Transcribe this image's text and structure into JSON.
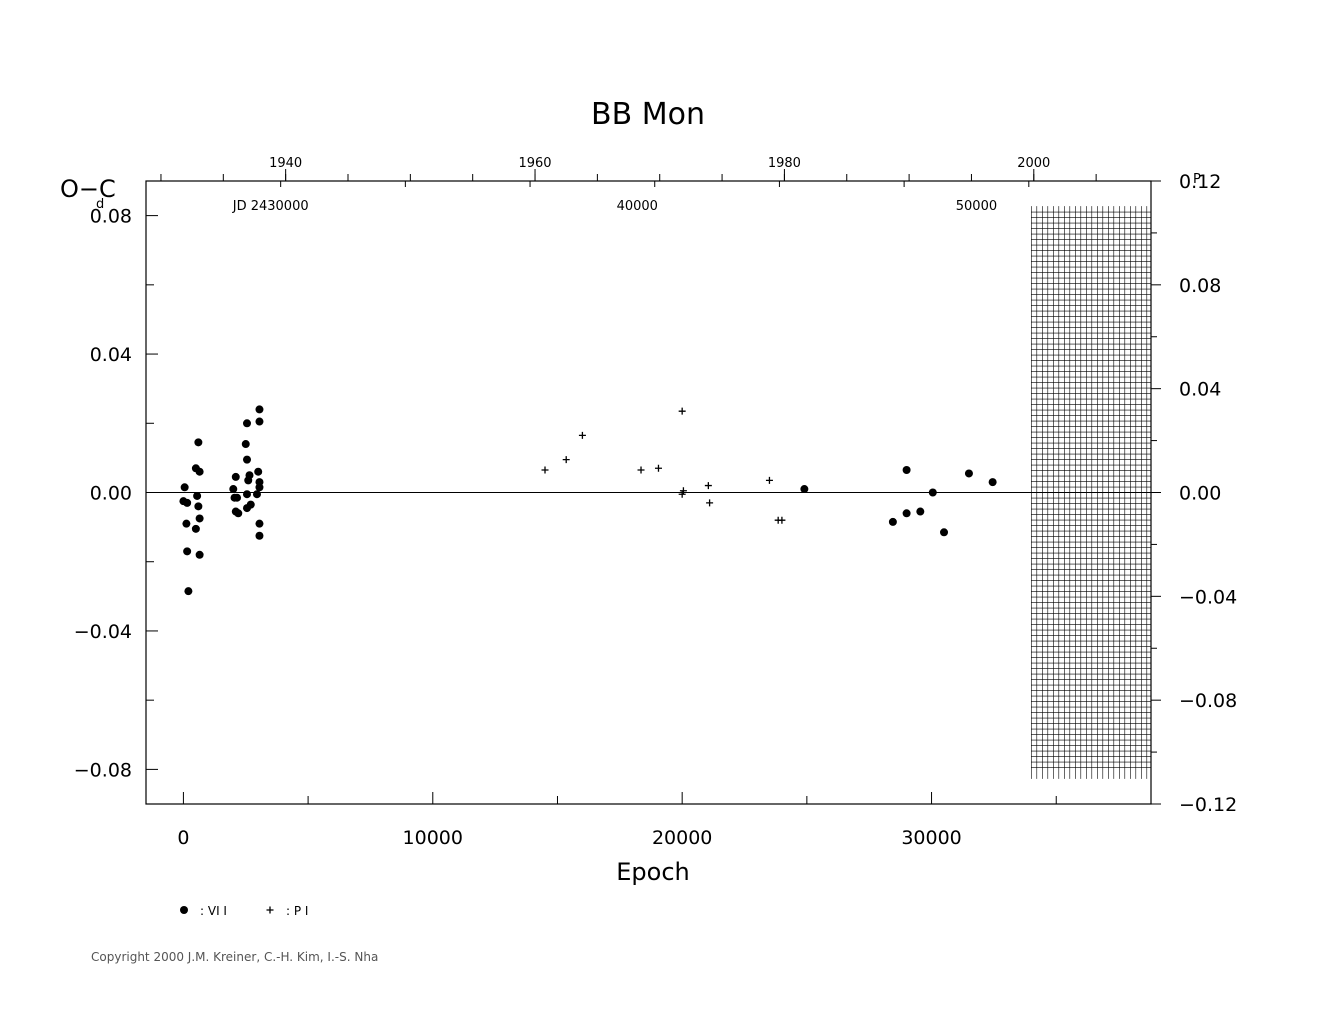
{
  "chart_data": {
    "type": "scatter",
    "title": "BB  Mon",
    "xlabel": "Epoch",
    "ylabel": "O−C",
    "ylabel_unit": "d",
    "y2_unit": "P",
    "xlim": [
      -1500,
      38800
    ],
    "ylim": [
      -0.09,
      0.09
    ],
    "y2lim": [
      -0.12,
      0.12
    ],
    "x_ticks": [
      {
        "value": 0,
        "label": "0"
      },
      {
        "value": 10000,
        "label": "10000"
      },
      {
        "value": 20000,
        "label": "20000"
      },
      {
        "value": 30000,
        "label": "30000"
      }
    ],
    "y_ticks": [
      {
        "value": 0.08,
        "label": "0.08"
      },
      {
        "value": 0.04,
        "label": "0.04"
      },
      {
        "value": 0.0,
        "label": "0.00"
      },
      {
        "value": -0.04,
        "label": "−0.04"
      },
      {
        "value": -0.08,
        "label": "−0.08"
      }
    ],
    "y2_ticks": [
      {
        "value": 0.12,
        "label": "0.12"
      },
      {
        "value": 0.08,
        "label": "0.08"
      },
      {
        "value": 0.04,
        "label": "0.04"
      },
      {
        "value": 0.0,
        "label": "0.00"
      },
      {
        "value": -0.04,
        "label": "−0.04"
      },
      {
        "value": -0.08,
        "label": "−0.08"
      },
      {
        "value": -0.12,
        "label": "−0.12"
      }
    ],
    "top_year_ticks": [
      {
        "epoch": 4100,
        "label": "1940"
      },
      {
        "epoch": 14100,
        "label": "1960"
      },
      {
        "epoch": 24100,
        "label": "1980"
      },
      {
        "epoch": 34100,
        "label": "2000"
      }
    ],
    "jd_labels": [
      {
        "epoch": 3500,
        "label": "JD  2430000"
      },
      {
        "epoch": 18200,
        "label": "40000"
      },
      {
        "epoch": 31800,
        "label": "50000"
      }
    ],
    "future_region": {
      "from_epoch": 34000,
      "to_epoch": 38800
    },
    "series": [
      {
        "name": "VI",
        "marker": "dot",
        "points": [
          [
            50,
            0.0015
          ],
          [
            0,
            -0.0025
          ],
          [
            150,
            -0.003
          ],
          [
            120,
            -0.009
          ],
          [
            150,
            -0.017
          ],
          [
            200,
            -0.0285
          ],
          [
            500,
            0.007
          ],
          [
            600,
            0.0145
          ],
          [
            650,
            0.006
          ],
          [
            550,
            -0.001
          ],
          [
            600,
            -0.004
          ],
          [
            650,
            -0.0075
          ],
          [
            500,
            -0.0105
          ],
          [
            650,
            -0.018
          ],
          [
            2000,
            0.001
          ],
          [
            2100,
            0.0045
          ],
          [
            2050,
            -0.0015
          ],
          [
            2150,
            -0.0015
          ],
          [
            2100,
            -0.0055
          ],
          [
            2200,
            -0.006
          ],
          [
            2550,
            0.02
          ],
          [
            2500,
            0.014
          ],
          [
            2550,
            0.0095
          ],
          [
            2650,
            0.005
          ],
          [
            2600,
            0.0035
          ],
          [
            2550,
            -0.0005
          ],
          [
            2700,
            -0.0035
          ],
          [
            2550,
            -0.0045
          ],
          [
            3050,
            0.024
          ],
          [
            3050,
            0.0205
          ],
          [
            3000,
            0.006
          ],
          [
            3050,
            0.003
          ],
          [
            3050,
            0.0015
          ],
          [
            2950,
            -0.0005
          ],
          [
            3050,
            -0.009
          ],
          [
            3050,
            -0.0125
          ],
          [
            24900,
            0.001
          ],
          [
            28450,
            -0.0085
          ],
          [
            29000,
            0.0065
          ],
          [
            29000,
            -0.006
          ],
          [
            29550,
            -0.0055
          ],
          [
            30050,
            0.0
          ],
          [
            30500,
            -0.0115
          ],
          [
            31500,
            0.0055
          ],
          [
            32450,
            0.003
          ]
        ]
      },
      {
        "name": "P I",
        "marker": "plus",
        "points": [
          [
            14500,
            0.0065
          ],
          [
            15350,
            0.0095
          ],
          [
            16000,
            0.0165
          ],
          [
            18350,
            0.0065
          ],
          [
            19050,
            0.007
          ],
          [
            20000,
            0.0235
          ],
          [
            20050,
            0.0005
          ],
          [
            20000,
            -0.0005
          ],
          [
            21050,
            0.002
          ],
          [
            21100,
            -0.003
          ],
          [
            23500,
            0.0035
          ],
          [
            23850,
            -0.008
          ],
          [
            24000,
            -0.008
          ]
        ]
      }
    ],
    "legend": [
      {
        "marker": "dot",
        "label": ": VI I"
      },
      {
        "marker": "plus",
        "label": ": P I"
      }
    ]
  },
  "copyright": "Copyright 2000 J.M. Kreiner, C.-H. Kim, I.-S. Nha"
}
